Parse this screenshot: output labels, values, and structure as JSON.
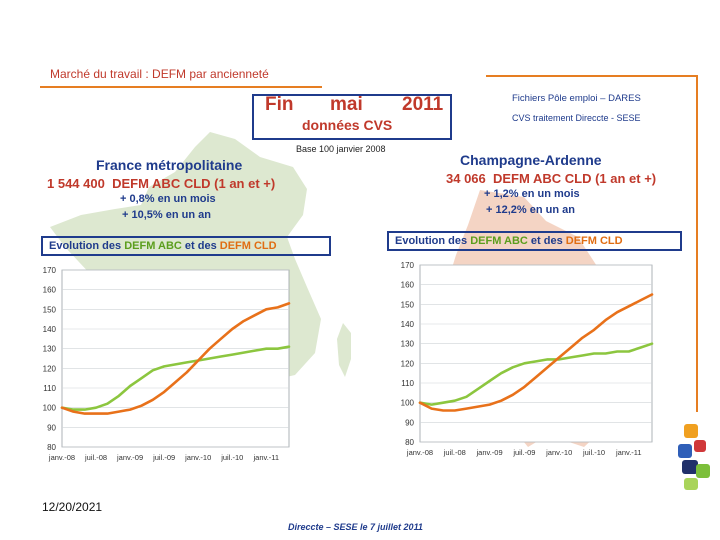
{
  "header": {
    "title": "Marché du travail : DEFM par ancienneté",
    "source_line1": "Fichiers Pôle emploi – DARES",
    "source_line2": "CVS traitement Direccte - SESE"
  },
  "period": {
    "fin": "Fin",
    "month": "mai",
    "year": "2011",
    "cvs": "données CVS",
    "base": "Base 100 janvier 2008"
  },
  "france": {
    "name": "France métropolitaine",
    "defm_value": "1 544 400",
    "defm_label": "DEFM ABC CLD (1 an et +)",
    "var_month": "+ 0,8% en un mois",
    "var_year": "+ 10,5% en un an"
  },
  "champagne": {
    "name": "Champagne-Ardenne",
    "defm_value": "34 066",
    "defm_label": "DEFM ABC CLD (1 an et +)",
    "var_month": "+ 1,2% en un mois",
    "var_year": "+ 12,2% en un an"
  },
  "evolution": {
    "prefix": "Evolution des ",
    "abc": "DEFM ABC",
    "middle": " et des ",
    "cld": "DEFM CLD"
  },
  "footer": {
    "date": "12/20/2021",
    "credit": "Direccte – SESE le 7 juillet 2011"
  },
  "colors": {
    "abc": "#8cc63f",
    "cld": "#e8711a",
    "accent": "#1f3b8c",
    "map_france": "#dde8d0",
    "map_champagne": "#f4d4c4"
  },
  "chart_data": [
    {
      "type": "line",
      "region": "France métropolitaine",
      "x": [
        "janv.-08",
        "mars-08",
        "mai-08",
        "juil.-08",
        "sept.-08",
        "nov.-08",
        "janv.-09",
        "mars-09",
        "mai-09",
        "juil.-09",
        "sept.-09",
        "nov.-09",
        "janv.-10",
        "mars-10",
        "mai-10",
        "juil.-10",
        "sept.-10",
        "nov.-10",
        "janv.-11",
        "mars-11",
        "mai-11"
      ],
      "xticks": [
        "janv.-08",
        "juil.-08",
        "janv.-09",
        "juil.-09",
        "janv.-10",
        "juil.-10",
        "janv.-11"
      ],
      "yticks": [
        80,
        90,
        100,
        110,
        120,
        130,
        140,
        150,
        160,
        170
      ],
      "ylim": [
        80,
        170
      ],
      "series": [
        {
          "name": "DEFM ABC",
          "color": "#8cc63f",
          "values": [
            100,
            99,
            99,
            100,
            102,
            106,
            111,
            115,
            119,
            121,
            122,
            123,
            124,
            125,
            126,
            127,
            128,
            129,
            130,
            130,
            131
          ]
        },
        {
          "name": "DEFM CLD",
          "color": "#e8711a",
          "values": [
            100,
            98,
            97,
            97,
            97,
            98,
            99,
            101,
            104,
            108,
            113,
            118,
            124,
            130,
            135,
            140,
            144,
            147,
            150,
            151,
            153
          ]
        }
      ]
    },
    {
      "type": "line",
      "region": "Champagne-Ardenne",
      "x": [
        "janv.-08",
        "mars-08",
        "mai-08",
        "juil.-08",
        "sept.-08",
        "nov.-08",
        "janv.-09",
        "mars-09",
        "mai-09",
        "juil.-09",
        "sept.-09",
        "nov.-09",
        "janv.-10",
        "mars-10",
        "mai-10",
        "juil.-10",
        "sept.-10",
        "nov.-10",
        "janv.-11",
        "mars-11",
        "mai-11"
      ],
      "xticks": [
        "janv.-08",
        "juil.-08",
        "janv.-09",
        "juil.-09",
        "janv.-10",
        "juil.-10",
        "janv.-11"
      ],
      "yticks": [
        80,
        90,
        100,
        110,
        120,
        130,
        140,
        150,
        160,
        170
      ],
      "ylim": [
        80,
        170
      ],
      "series": [
        {
          "name": "DEFM ABC",
          "color": "#8cc63f",
          "values": [
            100,
            99,
            100,
            101,
            103,
            107,
            111,
            115,
            118,
            120,
            121,
            122,
            122,
            123,
            124,
            125,
            125,
            126,
            126,
            128,
            130
          ]
        },
        {
          "name": "DEFM CLD",
          "color": "#e8711a",
          "values": [
            100,
            97,
            96,
            96,
            97,
            98,
            99,
            101,
            104,
            108,
            113,
            118,
            123,
            128,
            133,
            137,
            142,
            146,
            149,
            152,
            155
          ]
        }
      ]
    }
  ]
}
